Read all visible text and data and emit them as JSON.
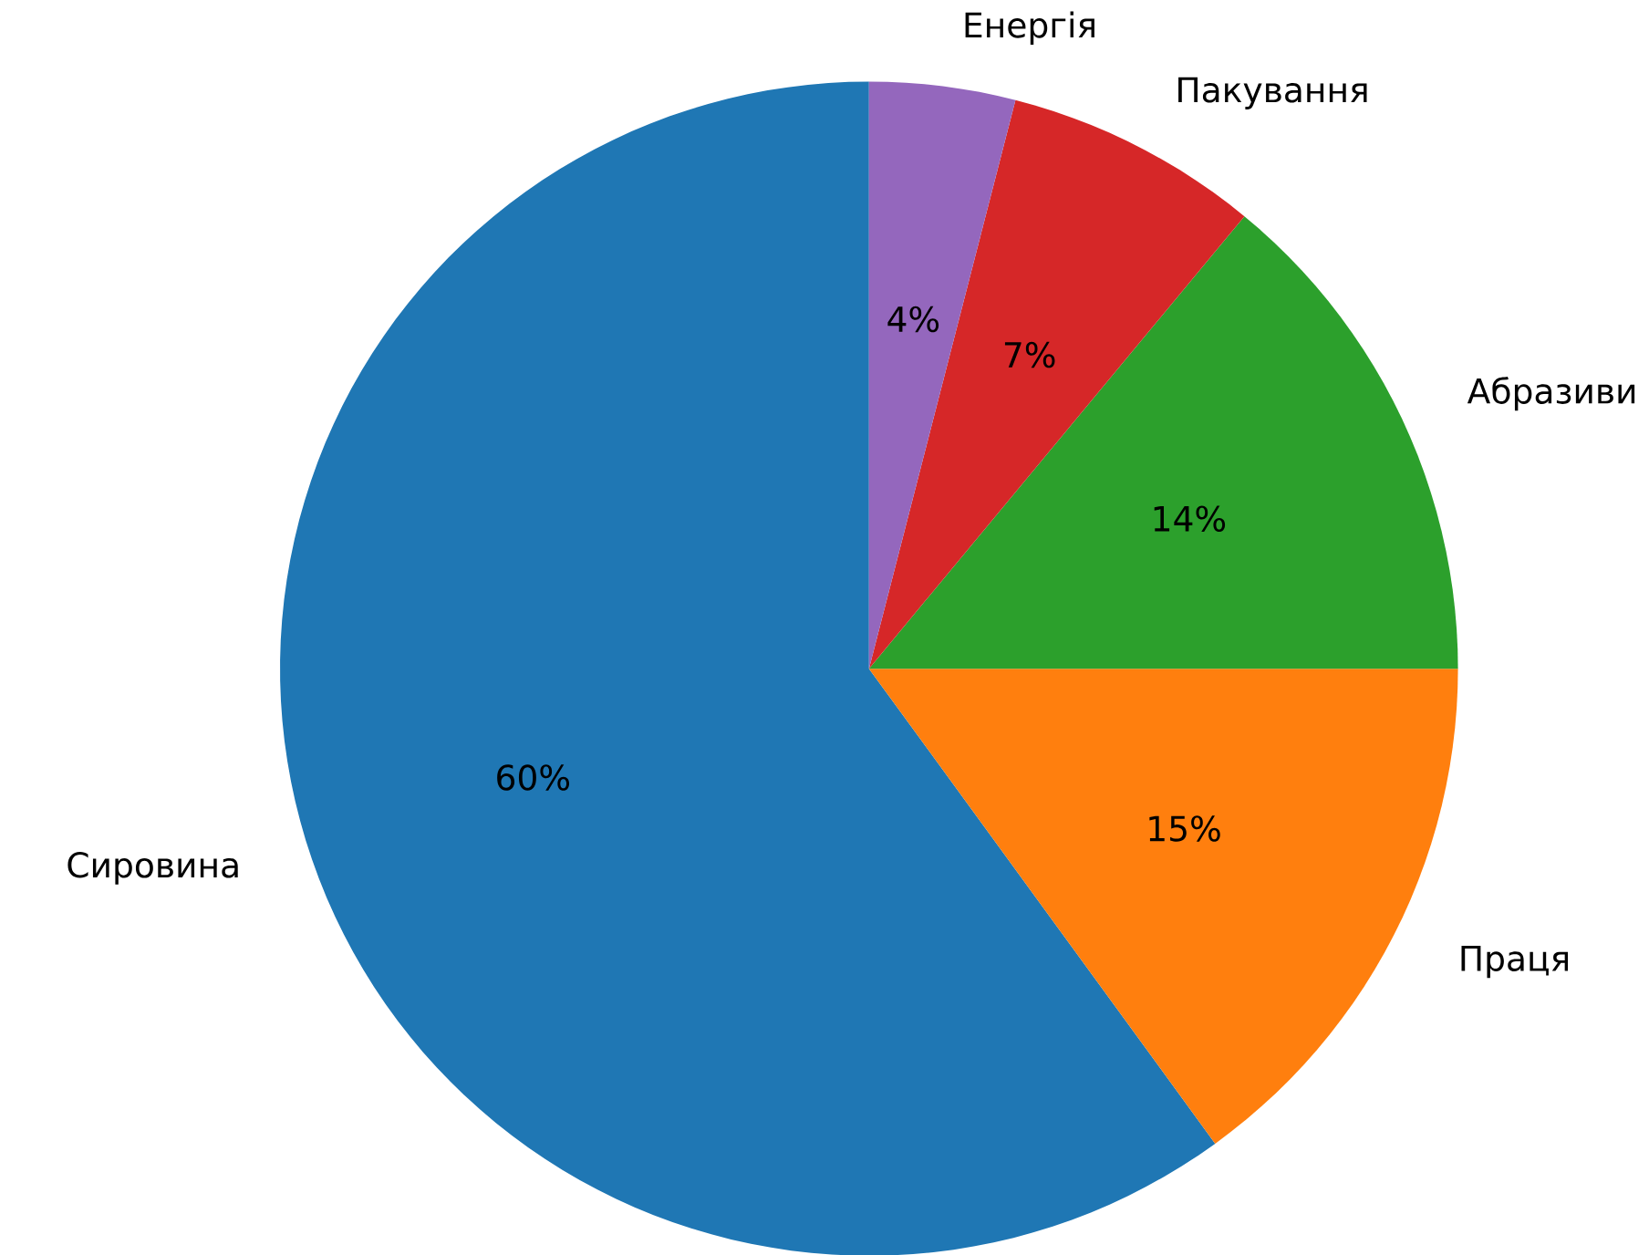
{
  "chart_data": {
    "type": "pie",
    "categories": [
      "Сировина",
      "Праця",
      "Абразиви",
      "Пакування",
      "Енергія"
    ],
    "values": [
      60,
      15,
      14,
      7,
      4
    ],
    "colors": [
      "#1f77b4",
      "#ff7f0e",
      "#2ca02c",
      "#d62728",
      "#9467bd"
    ],
    "value_labels": [
      "60%",
      "15%",
      "14%",
      "7%",
      "4%"
    ]
  }
}
